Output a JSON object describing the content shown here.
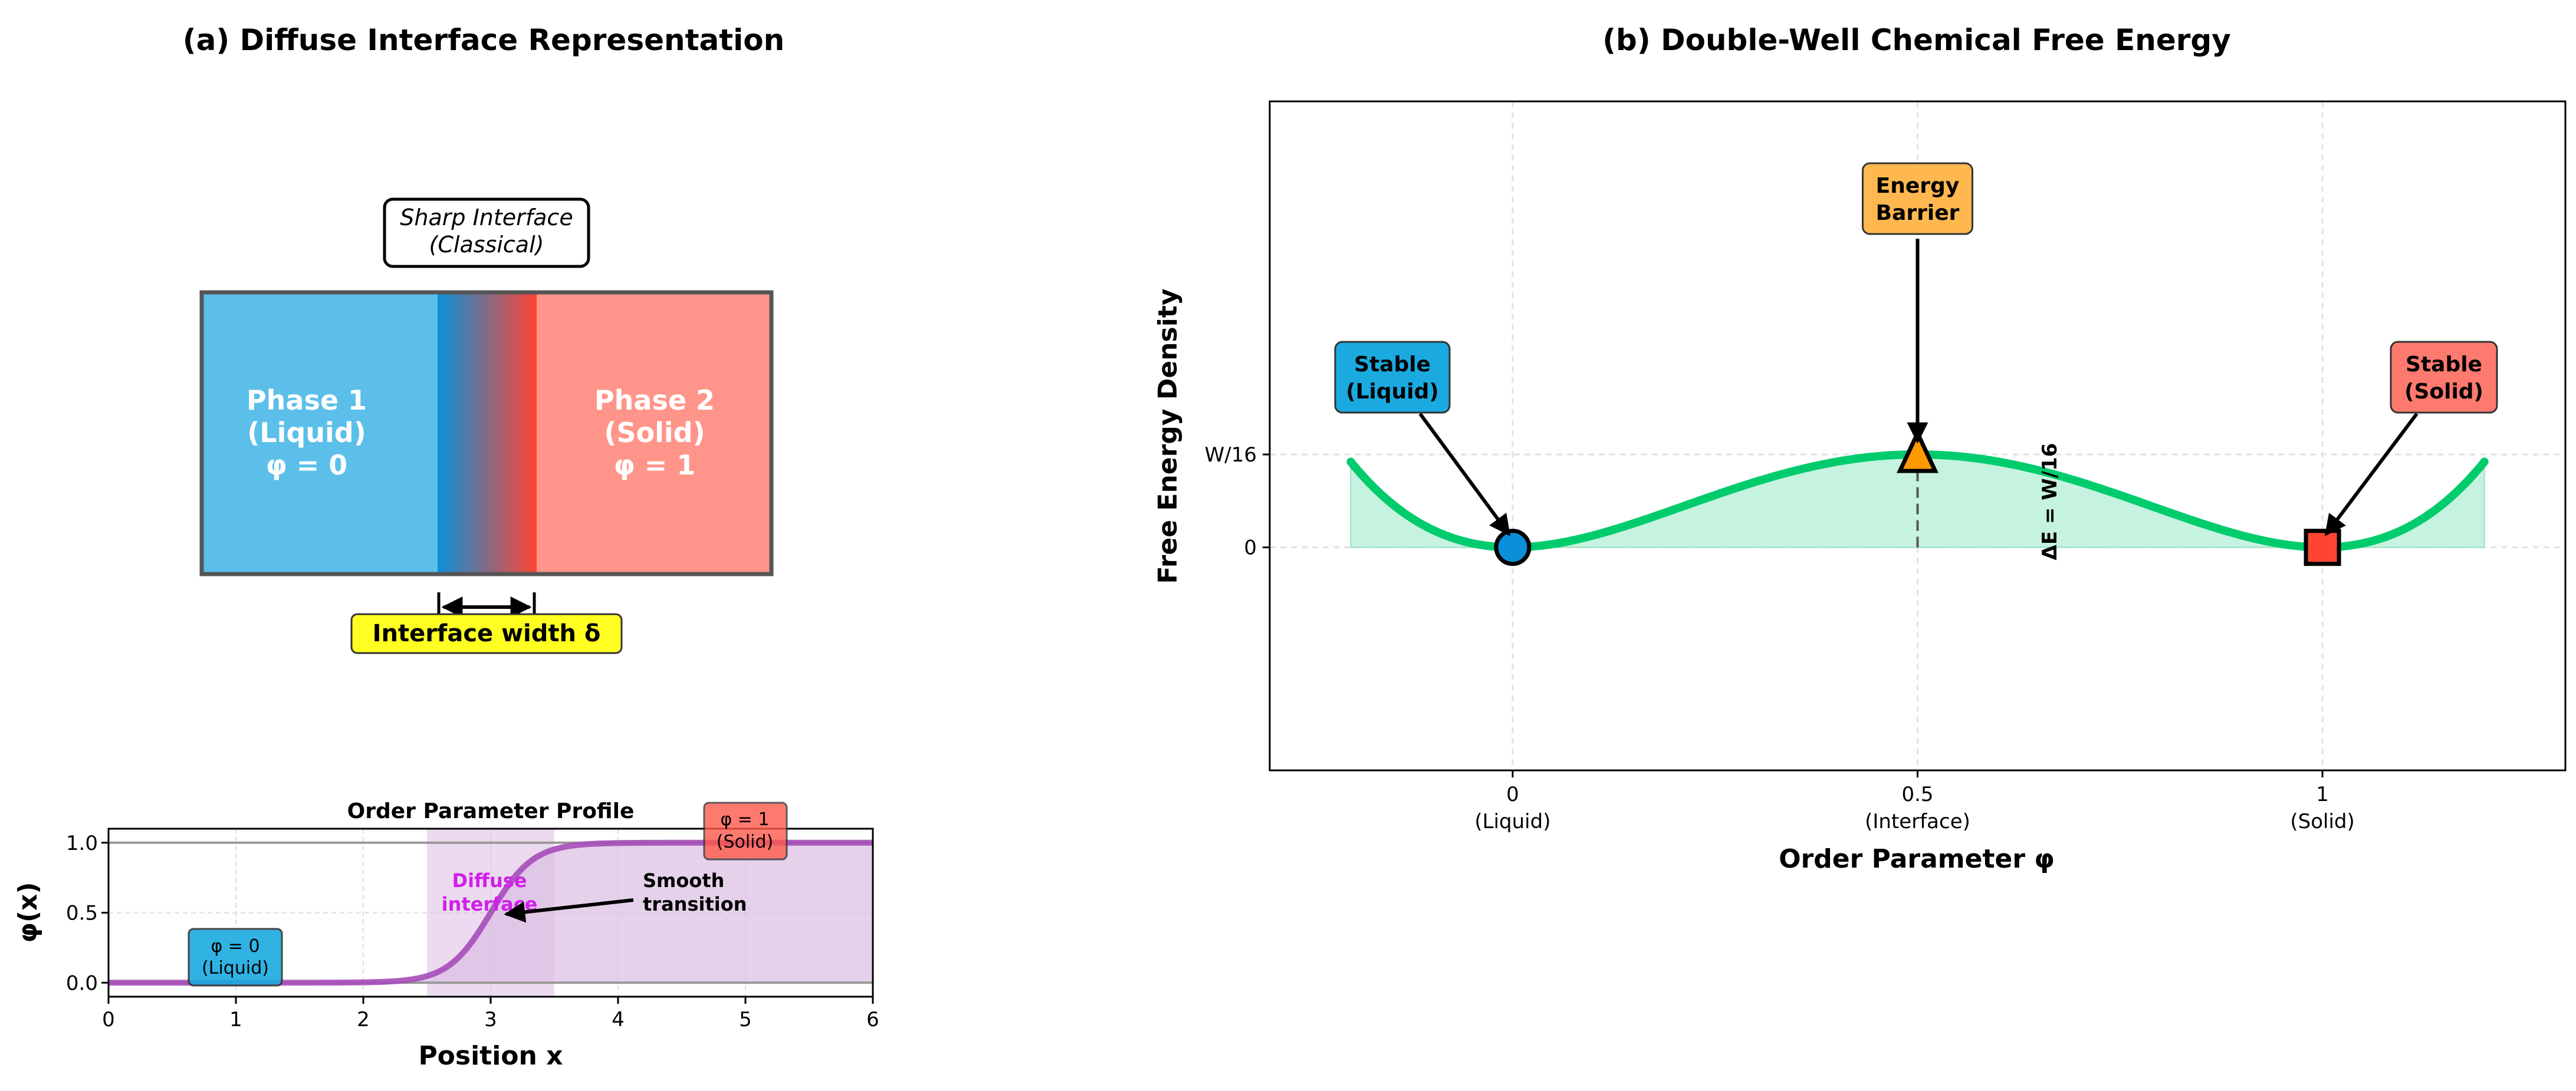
{
  "colors": {
    "liquid": "#5bbfea",
    "solid": "#ff958a",
    "curve_green": "#00cc6e",
    "fill_green": "#c6f2e0",
    "profile": "#a64db8",
    "band": "#dcbde3",
    "diffuse_text": "#d020e8",
    "label_yellow": "#ffff22",
    "barrier_orange": "#ffb84f",
    "marker_blue": "#0a90d8",
    "marker_orange": "#ff9900",
    "marker_red": "#ff4433"
  },
  "panel_a": {
    "title": "(a) Diffuse Interface Representation",
    "sharp_interface_label": [
      "Sharp Interface",
      "(Classical)"
    ],
    "phase1": [
      "Phase 1",
      "(Liquid)",
      "φ = 0"
    ],
    "phase2": [
      "Phase 2",
      "(Solid)",
      "φ = 1"
    ],
    "interface_width_label": "Interface width δ"
  },
  "chart_data": [
    {
      "type": "line",
      "title": "Order Parameter Profile",
      "xlabel": "Position x",
      "ylabel": "φ(x)",
      "xlim": [
        0,
        6
      ],
      "ylim": [
        -0.1,
        1.1
      ],
      "xticks": [
        "0",
        "1",
        "2",
        "3",
        "4",
        "5",
        "6"
      ],
      "yticks": [
        "0.0",
        "0.5",
        "1.0"
      ],
      "grid": true,
      "series": [
        {
          "x_range": [
            0,
            6
          ],
          "formula": "0.5*(1+tanh(3*(x-3)))"
        }
      ],
      "shaded_band": [
        2.5,
        3.5
      ],
      "annotations": {
        "liquid": [
          "φ = 0",
          "(Liquid)"
        ],
        "solid": [
          "φ = 1",
          "(Solid)"
        ],
        "diffuse": [
          "Diffuse",
          "interface"
        ],
        "smooth": [
          "Smooth",
          "transition"
        ]
      }
    },
    {
      "type": "line",
      "title": "(b) Double-Well Chemical Free Energy",
      "xlabel": "Order Parameter φ",
      "ylabel": "Free Energy Density",
      "xlim": [
        -0.3,
        1.3
      ],
      "ylim": [
        -0.15,
        0.3
      ],
      "xticks": [
        {
          "value": 0,
          "label": [
            "0",
            "(Liquid)"
          ]
        },
        {
          "value": 0.5,
          "label": [
            "0.5",
            "(Interface)"
          ]
        },
        {
          "value": 1,
          "label": [
            "1",
            "(Solid)"
          ]
        }
      ],
      "yticks": [
        {
          "value": 0,
          "label": "0"
        },
        {
          "value": 0.0625,
          "label": "W/16"
        }
      ],
      "grid": true,
      "series": [
        {
          "x_range": [
            -0.2,
            1.2
          ],
          "formula": "phi^2*(1-phi)^2"
        }
      ],
      "annotations": {
        "stable_liquid": [
          "Stable",
          "(Liquid)"
        ],
        "barrier": [
          "Energy",
          "Barrier"
        ],
        "stable_solid": [
          "Stable",
          "(Solid)"
        ],
        "delta_e": "ΔE = W/16"
      }
    }
  ]
}
